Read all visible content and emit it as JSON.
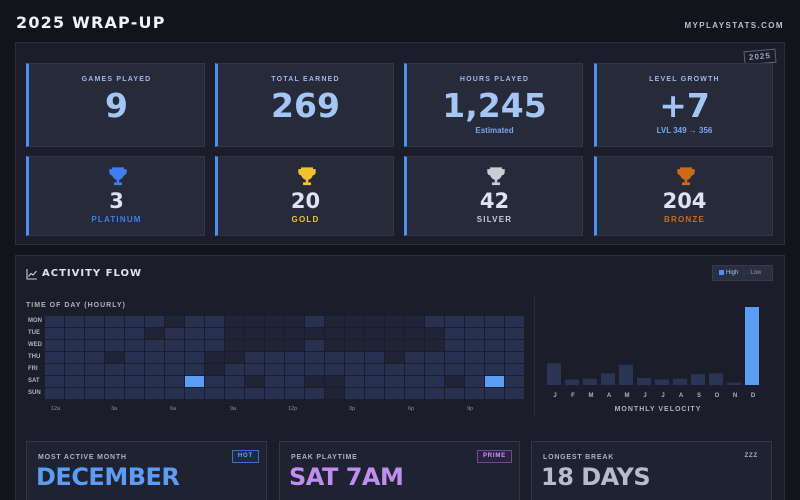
{
  "app": {
    "title": "2025 WRAP-UP",
    "site": "MYPLAYSTATS.COM",
    "year_badge": "2025"
  },
  "colors": {
    "accent": "#4f8ff5",
    "platinum": "#3f7ef0",
    "gold": "#f2c230",
    "silver": "#c9cdd6",
    "bronze": "#cc6a1c",
    "month_purple": "#c08ef0",
    "break_gray": "#b5bdcc"
  },
  "stats": [
    {
      "label": "GAMES PLAYED",
      "value": "9",
      "sub": ""
    },
    {
      "label": "TOTAL EARNED",
      "value": "269",
      "sub": ""
    },
    {
      "label": "HOURS PLAYED",
      "value": "1,245",
      "sub": "Estimated"
    },
    {
      "label": "LEVEL GROWTH",
      "value": "+7",
      "sub": "LVL 349 → 356"
    }
  ],
  "trophies": [
    {
      "icon": "platinum-trophy-icon",
      "count": "3",
      "label": "PLATINUM"
    },
    {
      "icon": "gold-trophy-icon",
      "count": "20",
      "label": "GOLD"
    },
    {
      "icon": "silver-trophy-icon",
      "count": "42",
      "label": "SILVER"
    },
    {
      "icon": "bronze-trophy-icon",
      "count": "204",
      "label": "BRONZE"
    }
  ],
  "activity": {
    "title": "ACTIVITY FLOW",
    "legend": {
      "high": "High",
      "low": "Low"
    },
    "heatmap_label": "TIME OF DAY (HOURLY)",
    "velocity_label": "MONTHLY VELOCITY"
  },
  "chart_data": [
    {
      "type": "heatmap",
      "title": "TIME OF DAY (HOURLY)",
      "y_categories": [
        "MON",
        "TUE",
        "WED",
        "THU",
        "FRI",
        "SAT",
        "SUN"
      ],
      "x_tick_labels": [
        "12a",
        "3a",
        "6a",
        "9a",
        "12p",
        "3p",
        "6p",
        "9p"
      ],
      "scale": {
        "low": "Low",
        "high": "High"
      },
      "levels": [
        [
          1,
          1,
          1,
          1,
          1,
          1,
          0,
          1,
          1,
          0,
          0,
          0,
          0,
          1,
          0,
          0,
          0,
          0,
          0,
          1,
          1,
          1,
          1,
          1
        ],
        [
          1,
          1,
          1,
          1,
          1,
          0,
          1,
          1,
          1,
          0,
          0,
          0,
          0,
          0,
          0,
          0,
          0,
          0,
          0,
          0,
          1,
          1,
          1,
          1
        ],
        [
          1,
          1,
          1,
          1,
          1,
          1,
          1,
          1,
          1,
          0,
          0,
          0,
          0,
          1,
          0,
          0,
          0,
          0,
          0,
          0,
          1,
          1,
          1,
          1
        ],
        [
          1,
          1,
          1,
          0,
          1,
          1,
          1,
          1,
          0,
          0,
          1,
          1,
          1,
          1,
          1,
          1,
          1,
          0,
          1,
          1,
          1,
          1,
          1,
          1
        ],
        [
          1,
          1,
          1,
          1,
          1,
          1,
          1,
          1,
          0,
          1,
          1,
          1,
          1,
          1,
          1,
          1,
          1,
          1,
          1,
          1,
          1,
          1,
          1,
          1
        ],
        [
          1,
          1,
          1,
          1,
          1,
          1,
          1,
          3,
          1,
          1,
          0,
          1,
          1,
          0,
          0,
          1,
          1,
          1,
          1,
          1,
          0,
          1,
          3,
          1
        ],
        [
          1,
          1,
          1,
          1,
          1,
          1,
          1,
          1,
          1,
          1,
          1,
          1,
          1,
          1,
          0,
          1,
          1,
          1,
          1,
          1,
          1,
          1,
          1,
          1
        ]
      ]
    },
    {
      "type": "bar",
      "title": "MONTHLY VELOCITY",
      "categories": [
        "J",
        "F",
        "M",
        "A",
        "M",
        "J",
        "J",
        "A",
        "S",
        "O",
        "N",
        "D"
      ],
      "values": [
        28,
        7,
        8,
        15,
        26,
        9,
        7,
        8,
        14,
        15,
        3,
        100
      ],
      "highlight_index": 11
    }
  ],
  "highlights": [
    {
      "label": "MOST ACTIVE MONTH",
      "badge": "HOT",
      "value": "DECEMBER"
    },
    {
      "label": "PEAK PLAYTIME",
      "badge": "PRIME",
      "value": "SAT 7AM"
    },
    {
      "label": "LONGEST BREAK",
      "badge": "ZZZ",
      "value": "18 DAYS"
    }
  ]
}
